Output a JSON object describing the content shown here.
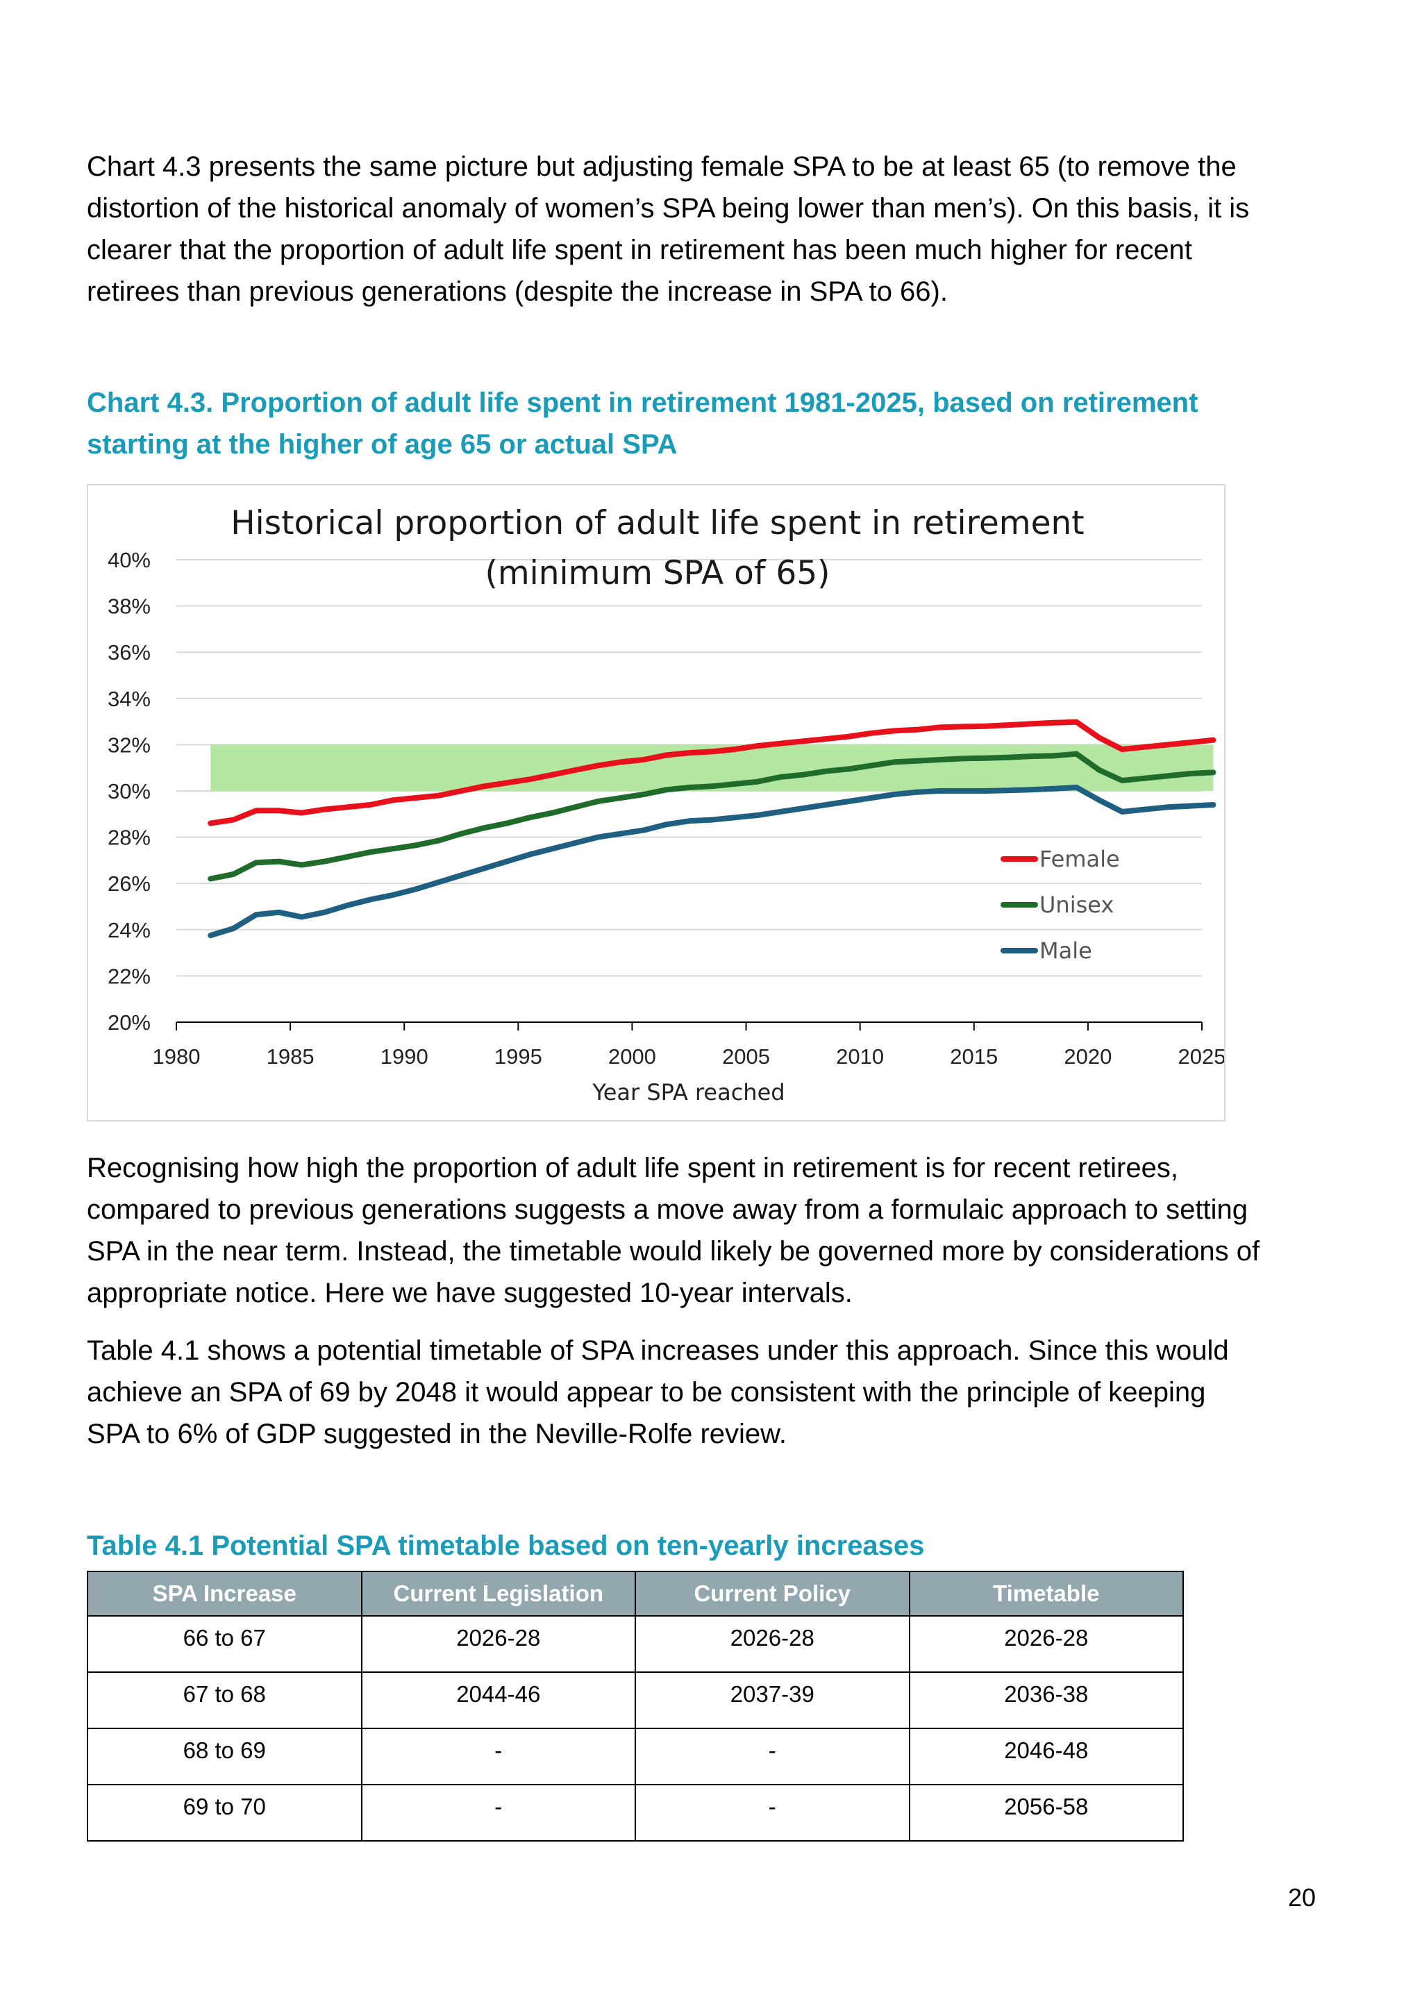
{
  "intro_paragraph": "Chart 4.3 presents the same picture but adjusting female SPA to be at least 65 (to remove the distortion of the historical anomaly of women’s SPA being lower than men’s). On this basis, it is clearer that the proportion of adult life spent in retirement has been much higher for recent retirees than previous generations (despite the increase in SPA to 66).",
  "chart_caption": "Chart 4.3. Proportion of adult life spent in retirement 1981-2025, based on retirement starting at the higher of age 65 or actual SPA",
  "chart_data": {
    "type": "line",
    "title_lines": [
      "Historical proportion of adult life spent in retirement",
      "(minimum SPA of 65)"
    ],
    "xlabel": "Year SPA reached",
    "ylabel": "",
    "xlim": [
      1980,
      2025
    ],
    "ylim": [
      20,
      40
    ],
    "x_ticks": [
      1980,
      1985,
      1990,
      1995,
      2000,
      2005,
      2010,
      2015,
      2020,
      2025
    ],
    "x_tick_labels": [
      "1980",
      "1985",
      "1990",
      "1995",
      "2000",
      "2005",
      "2010",
      "2015",
      "2020",
      "2025"
    ],
    "y_ticks": [
      20,
      22,
      24,
      26,
      28,
      30,
      32,
      34,
      36,
      38,
      40
    ],
    "y_tick_labels": [
      "20%",
      "22%",
      "24%",
      "26%",
      "28%",
      "30%",
      "32%",
      "34%",
      "36%",
      "38%",
      "40%"
    ],
    "grid": true,
    "legend_position": "right",
    "shaded_band": {
      "x": [
        1981.5,
        2025.5
      ],
      "y": [
        30,
        32
      ],
      "color": "#b3e6a1"
    },
    "series": [
      {
        "name": "Female",
        "color": "#e8101a",
        "x": [
          1981.5,
          1982.5,
          1983.5,
          1984.5,
          1985.5,
          1986.5,
          1987.5,
          1988.5,
          1989.5,
          1990.5,
          1991.5,
          1992.5,
          1993.5,
          1994.5,
          1995.5,
          1996.5,
          1997.5,
          1998.5,
          1999.5,
          2000.5,
          2001.5,
          2002.5,
          2003.5,
          2004.5,
          2005.5,
          2006.5,
          2007.5,
          2008.5,
          2009.5,
          2010.5,
          2011.5,
          2012.5,
          2013.5,
          2014.5,
          2015.5,
          2016.5,
          2017.5,
          2018.5,
          2019.5,
          2020.5,
          2021.5,
          2022.5,
          2023.5,
          2024.5,
          2025.5
        ],
        "y": [
          28.6,
          28.75,
          29.15,
          29.15,
          29.05,
          29.2,
          29.3,
          29.4,
          29.6,
          29.7,
          29.8,
          30.0,
          30.2,
          30.35,
          30.5,
          30.7,
          30.9,
          31.1,
          31.25,
          31.35,
          31.55,
          31.65,
          31.7,
          31.8,
          31.95,
          32.05,
          32.15,
          32.25,
          32.35,
          32.5,
          32.6,
          32.65,
          32.75,
          32.78,
          32.8,
          32.85,
          32.9,
          32.95,
          32.98,
          32.3,
          31.8,
          31.9,
          32.0,
          32.1,
          32.2
        ]
      },
      {
        "name": "Unisex",
        "color": "#1e6b2a",
        "x": [
          1981.5,
          1982.5,
          1983.5,
          1984.5,
          1985.5,
          1986.5,
          1987.5,
          1988.5,
          1989.5,
          1990.5,
          1991.5,
          1992.5,
          1993.5,
          1994.5,
          1995.5,
          1996.5,
          1997.5,
          1998.5,
          1999.5,
          2000.5,
          2001.5,
          2002.5,
          2003.5,
          2004.5,
          2005.5,
          2006.5,
          2007.5,
          2008.5,
          2009.5,
          2010.5,
          2011.5,
          2012.5,
          2013.5,
          2014.5,
          2015.5,
          2016.5,
          2017.5,
          2018.5,
          2019.5,
          2020.5,
          2021.5,
          2022.5,
          2023.5,
          2024.5,
          2025.5
        ],
        "y": [
          26.2,
          26.4,
          26.9,
          26.95,
          26.8,
          26.95,
          27.15,
          27.35,
          27.5,
          27.65,
          27.85,
          28.15,
          28.4,
          28.6,
          28.85,
          29.05,
          29.3,
          29.55,
          29.7,
          29.85,
          30.05,
          30.15,
          30.2,
          30.3,
          30.4,
          30.6,
          30.7,
          30.85,
          30.95,
          31.1,
          31.25,
          31.3,
          31.35,
          31.4,
          31.42,
          31.45,
          31.5,
          31.52,
          31.6,
          30.9,
          30.45,
          30.55,
          30.65,
          30.75,
          30.8
        ]
      },
      {
        "name": "Male",
        "color": "#1f5f82",
        "x": [
          1981.5,
          1982.5,
          1983.5,
          1984.5,
          1985.5,
          1986.5,
          1987.5,
          1988.5,
          1989.5,
          1990.5,
          1991.5,
          1992.5,
          1993.5,
          1994.5,
          1995.5,
          1996.5,
          1997.5,
          1998.5,
          1999.5,
          2000.5,
          2001.5,
          2002.5,
          2003.5,
          2004.5,
          2005.5,
          2006.5,
          2007.5,
          2008.5,
          2009.5,
          2010.5,
          2011.5,
          2012.5,
          2013.5,
          2014.5,
          2015.5,
          2016.5,
          2017.5,
          2018.5,
          2019.5,
          2020.5,
          2021.5,
          2022.5,
          2023.5,
          2024.5,
          2025.5
        ],
        "y": [
          23.75,
          24.05,
          24.65,
          24.75,
          24.55,
          24.75,
          25.05,
          25.3,
          25.5,
          25.75,
          26.05,
          26.35,
          26.65,
          26.95,
          27.25,
          27.5,
          27.75,
          28.0,
          28.15,
          28.3,
          28.55,
          28.7,
          28.75,
          28.85,
          28.95,
          29.1,
          29.25,
          29.4,
          29.55,
          29.7,
          29.85,
          29.95,
          30.0,
          30.0,
          30.0,
          30.02,
          30.05,
          30.1,
          30.15,
          29.6,
          29.1,
          29.2,
          29.3,
          29.35,
          29.4
        ]
      }
    ]
  },
  "para2": "Recognising how high the proportion of adult life spent in retirement is for recent retirees, compared to previous generations suggests a move away from a formulaic approach to setting SPA in the near term. Instead, the timetable would likely be governed more by considerations of appropriate notice. Here we have suggested 10-year intervals.",
  "para3": "Table 4.1 shows a potential timetable of SPA increases under this approach. Since this would achieve an SPA of 69 by 2048 it would appear to be consistent with the principle of keeping SPA to 6% of GDP suggested in the Neville-Rolfe review.",
  "table_caption": "Table 4.1 Potential SPA timetable based on ten-yearly increases",
  "table": {
    "headers": [
      "SPA Increase",
      "Current Legislation",
      "Current Policy",
      "Timetable"
    ],
    "rows": [
      [
        "66 to 67",
        "2026-28",
        "2026-28",
        "2026-28"
      ],
      [
        "67 to 68",
        "2044-46",
        "2037-39",
        "2036-38"
      ],
      [
        "68 to 69",
        "-",
        "-",
        "2046-48"
      ],
      [
        "69 to 70",
        "-",
        "-",
        "2056-58"
      ]
    ]
  },
  "page_number": "20"
}
